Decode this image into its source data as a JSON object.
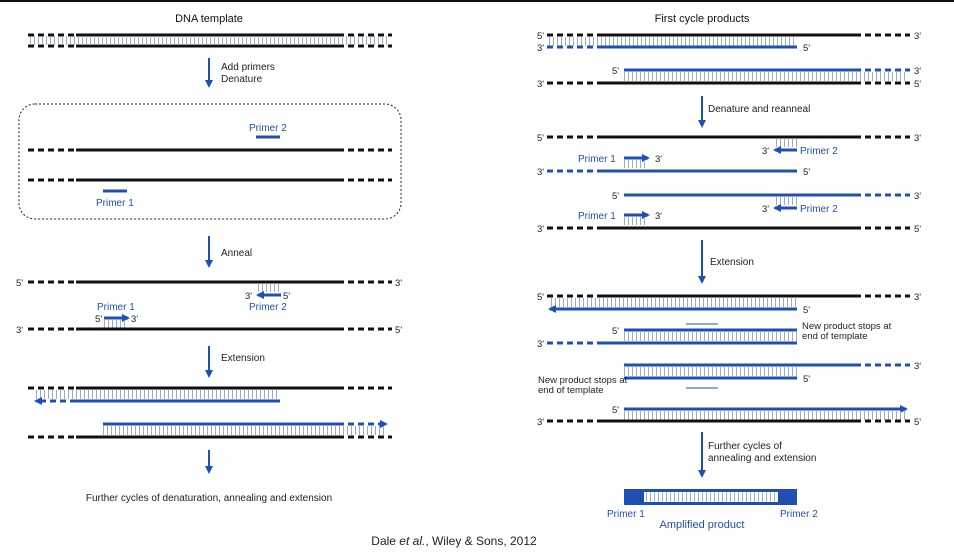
{
  "left": {
    "title": "DNA  template",
    "step_add": [
      "Add  primers",
      "Denature"
    ],
    "primer2": "Primer 2",
    "primer1": "Primer  1",
    "anneal": "Anneal",
    "ann_5a": "5'",
    "ann_3a": "3'",
    "ann_p1": "Primer  1",
    "ann_p2": "Primer 2",
    "ann_p1_5": "5'",
    "ann_p1_3": "3'",
    "ann_p2_3": "3'",
    "ann_p2_5": "5'",
    "ann_3b": "3'",
    "ann_5b": "5'",
    "extension": "Extension",
    "further": "Further cycles of denaturation, annealing and extension"
  },
  "right": {
    "title": "First cycle products",
    "denature_reanneal": "Denature and reanneal",
    "extension": "Extension",
    "further": [
      "Further cycles of",
      "annealing and extension"
    ],
    "primer1": "Primer  1",
    "primer2": "Primer 2",
    "stops_top": [
      "New product stops at",
      "end of template"
    ],
    "stops_bottom": [
      "New product stops at",
      "end of template"
    ],
    "amp_primer1": "Primer 1",
    "amp_primer2": "Primer 2",
    "amplified": "Amplified  product",
    "five": "5'",
    "three": "3'"
  },
  "credit": {
    "before": "Dale ",
    "italic": "et al.",
    "after": ", Wiley & Sons, 2012"
  },
  "colors": {
    "strand": "#111111",
    "primer": "#1f4fb3",
    "rung": "#8aa0c8"
  }
}
